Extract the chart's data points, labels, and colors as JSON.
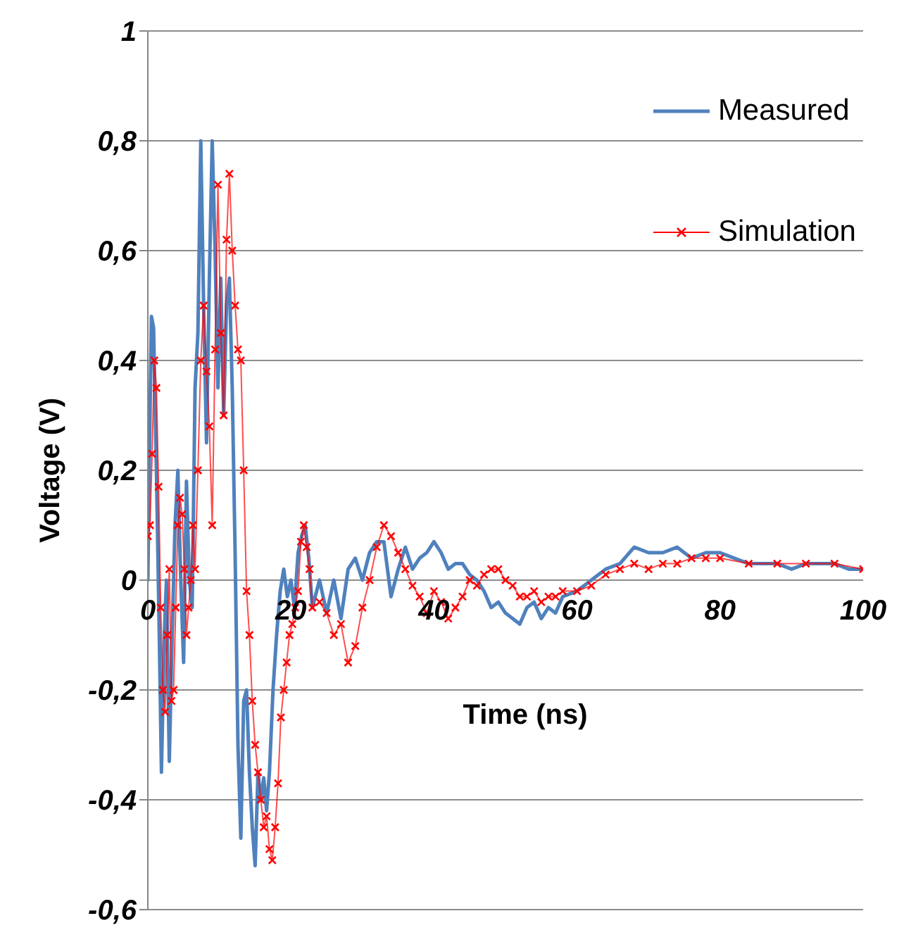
{
  "chart_data": {
    "type": "line",
    "xlabel": "Time (ns)",
    "ylabel": "Voltage (V)",
    "xlim": [
      0,
      100
    ],
    "xticks": [
      0,
      20,
      40,
      60,
      80,
      100
    ],
    "ylim": [
      -0.6,
      1
    ],
    "yticks": [
      {
        "value": -0.6,
        "label": "-0,6"
      },
      {
        "value": -0.4,
        "label": "-0,4"
      },
      {
        "value": -0.2,
        "label": "-0,2"
      },
      {
        "value": 0,
        "label": "0"
      },
      {
        "value": 0.2,
        "label": "0,2"
      },
      {
        "value": 0.4,
        "label": "0,4"
      },
      {
        "value": 0.6,
        "label": "0,6"
      },
      {
        "value": 0.8,
        "label": "0,8"
      },
      {
        "value": 1,
        "label": "1"
      }
    ],
    "grid": "y",
    "legend": "top right",
    "series": [
      {
        "name": "Measured",
        "color": "#4f81bd",
        "marker": "none",
        "x": [
          0,
          0.3,
          0.5,
          0.8,
          1.2,
          1.6,
          1.9,
          2.3,
          2.6,
          3.0,
          3.4,
          3.8,
          4.2,
          4.6,
          5.0,
          5.4,
          5.8,
          6.2,
          6.6,
          7.0,
          7.4,
          7.8,
          8.2,
          8.6,
          9.0,
          9.4,
          9.8,
          10.2,
          10.6,
          11.0,
          11.4,
          11.8,
          12.2,
          12.6,
          13.0,
          13.4,
          13.8,
          14.2,
          14.6,
          15.0,
          15.4,
          15.8,
          16.2,
          16.6,
          17.0,
          17.5,
          18.0,
          18.5,
          19.0,
          19.5,
          20.0,
          20.5,
          21.0,
          21.5,
          22.0,
          22.5,
          23.0,
          24,
          25,
          26,
          27,
          28,
          29,
          30,
          31,
          32,
          33,
          34,
          35,
          36,
          37,
          38,
          39,
          40,
          41,
          42,
          43,
          44,
          45,
          46,
          47,
          48,
          49,
          50,
          51,
          52,
          53,
          54,
          55,
          56,
          57,
          58,
          60,
          62,
          64,
          66,
          68,
          70,
          72,
          74,
          76,
          78,
          80,
          82,
          84,
          86,
          88,
          90,
          92,
          94,
          96,
          98,
          100
        ],
        "values": [
          0.0,
          0.3,
          0.48,
          0.46,
          0.2,
          -0.1,
          -0.35,
          -0.1,
          0.0,
          -0.33,
          -0.1,
          0.1,
          0.2,
          0.0,
          -0.15,
          0.18,
          0.0,
          -0.05,
          0.35,
          0.45,
          0.8,
          0.5,
          0.25,
          0.55,
          0.8,
          0.6,
          0.35,
          0.55,
          0.3,
          0.5,
          0.55,
          0.35,
          0.05,
          -0.3,
          -0.47,
          -0.22,
          -0.2,
          -0.35,
          -0.45,
          -0.52,
          -0.35,
          -0.4,
          -0.36,
          -0.42,
          -0.35,
          -0.2,
          -0.1,
          -0.02,
          0.02,
          -0.03,
          0.0,
          -0.05,
          0.05,
          0.08,
          0.1,
          0.04,
          -0.05,
          0.0,
          -0.06,
          0.0,
          -0.07,
          0.02,
          0.04,
          0.0,
          0.05,
          0.07,
          0.07,
          -0.03,
          0.02,
          0.06,
          0.02,
          0.04,
          0.05,
          0.07,
          0.05,
          0.02,
          0.03,
          0.03,
          0.01,
          0.0,
          -0.02,
          -0.05,
          -0.04,
          -0.06,
          -0.07,
          -0.08,
          -0.05,
          -0.04,
          -0.07,
          -0.05,
          -0.06,
          -0.03,
          -0.02,
          0.0,
          0.02,
          0.03,
          0.06,
          0.05,
          0.05,
          0.06,
          0.04,
          0.05,
          0.05,
          0.04,
          0.03,
          0.03,
          0.03,
          0.02,
          0.03,
          0.03,
          0.03,
          0.02,
          0.02
        ]
      },
      {
        "name": "Simulation",
        "color": "#ff0000",
        "marker": "cross",
        "x": [
          0,
          0.3,
          0.6,
          0.9,
          1.2,
          1.5,
          1.8,
          2.1,
          2.4,
          2.7,
          3.0,
          3.3,
          3.6,
          3.9,
          4.2,
          4.5,
          4.8,
          5.1,
          5.4,
          5.7,
          6.0,
          6.3,
          6.6,
          7.0,
          7.4,
          7.8,
          8.2,
          8.6,
          9.0,
          9.4,
          9.8,
          10.2,
          10.6,
          11.0,
          11.4,
          11.8,
          12.2,
          12.6,
          13.0,
          13.4,
          13.8,
          14.2,
          14.6,
          15.0,
          15.4,
          15.8,
          16.2,
          16.6,
          17.0,
          17.4,
          17.8,
          18.2,
          18.6,
          19.0,
          19.4,
          19.8,
          20.2,
          20.6,
          21.0,
          21.4,
          21.8,
          22.2,
          22.6,
          23.0,
          24,
          25,
          26,
          27,
          28,
          29,
          30,
          31,
          32,
          33,
          34,
          35,
          36,
          37,
          38,
          39,
          40,
          41,
          42,
          43,
          44,
          45,
          46,
          47,
          48,
          49,
          50,
          51,
          52,
          53,
          54,
          55,
          56,
          57,
          58,
          60,
          62,
          64,
          66,
          68,
          70,
          72,
          74,
          76,
          78,
          80,
          84,
          88,
          92,
          96,
          100
        ],
        "values": [
          0.08,
          0.1,
          0.23,
          0.4,
          0.35,
          0.17,
          -0.05,
          -0.2,
          -0.24,
          -0.1,
          0.02,
          -0.22,
          -0.2,
          -0.05,
          0.1,
          0.15,
          0.12,
          0.02,
          -0.1,
          -0.05,
          0.0,
          0.1,
          0.02,
          0.2,
          0.4,
          0.5,
          0.38,
          0.28,
          0.1,
          0.42,
          0.72,
          0.45,
          0.3,
          0.62,
          0.74,
          0.6,
          0.5,
          0.42,
          0.4,
          0.2,
          -0.02,
          -0.1,
          -0.22,
          -0.3,
          -0.35,
          -0.4,
          -0.45,
          -0.43,
          -0.49,
          -0.51,
          -0.45,
          -0.37,
          -0.25,
          -0.2,
          -0.15,
          -0.1,
          -0.08,
          -0.05,
          -0.02,
          0.07,
          0.1,
          0.06,
          0.02,
          -0.05,
          -0.04,
          -0.06,
          -0.1,
          -0.08,
          -0.15,
          -0.12,
          -0.05,
          0.0,
          0.06,
          0.1,
          0.08,
          0.05,
          0.02,
          -0.01,
          -0.03,
          -0.06,
          -0.02,
          -0.04,
          -0.07,
          -0.05,
          -0.03,
          0.0,
          -0.01,
          0.01,
          0.02,
          0.02,
          0.0,
          -0.01,
          -0.03,
          -0.03,
          -0.02,
          -0.04,
          -0.03,
          -0.03,
          -0.02,
          -0.02,
          -0.01,
          0.01,
          0.02,
          0.03,
          0.02,
          0.03,
          0.03,
          0.04,
          0.04,
          0.04,
          0.03,
          0.03,
          0.03,
          0.03,
          0.02
        ]
      }
    ]
  }
}
